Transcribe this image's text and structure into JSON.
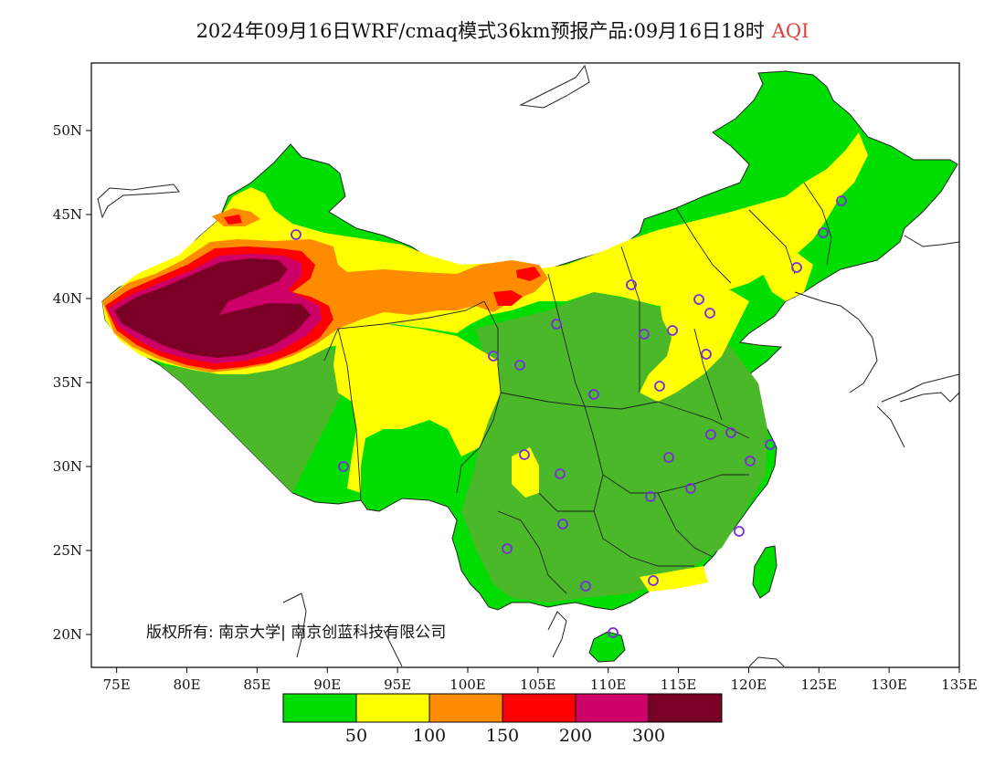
{
  "title": {
    "main": "2024年09月16日WRF/cmaq模式36km预报产品:09月16日18时",
    "variable": "AQI"
  },
  "axes": {
    "x_ticks": [
      "75E",
      "80E",
      "85E",
      "90E",
      "95E",
      "100E",
      "105E",
      "110E",
      "115E",
      "120E",
      "125E",
      "130E",
      "135E"
    ],
    "y_ticks": [
      "50N",
      "45N",
      "40N",
      "35N",
      "30N",
      "25N",
      "20N"
    ]
  },
  "copyright": "版权所有: 南京大学| 南京创蓝科技有限公司",
  "colorbar": {
    "colors": [
      "#00dd00",
      "#ffff00",
      "#ff8c00",
      "#ff0000",
      "#cc0066",
      "#7a0026"
    ],
    "labels": [
      "50",
      "100",
      "150",
      "200",
      "300"
    ]
  },
  "map_colors": {
    "green": "#00dd00",
    "darkgreen": "#4bb82a",
    "yellow": "#ffff00",
    "orange": "#ff8c00",
    "red": "#ff0000",
    "magenta": "#cc0066",
    "maroon": "#7a0026",
    "station_marker": "#7b2be0"
  }
}
